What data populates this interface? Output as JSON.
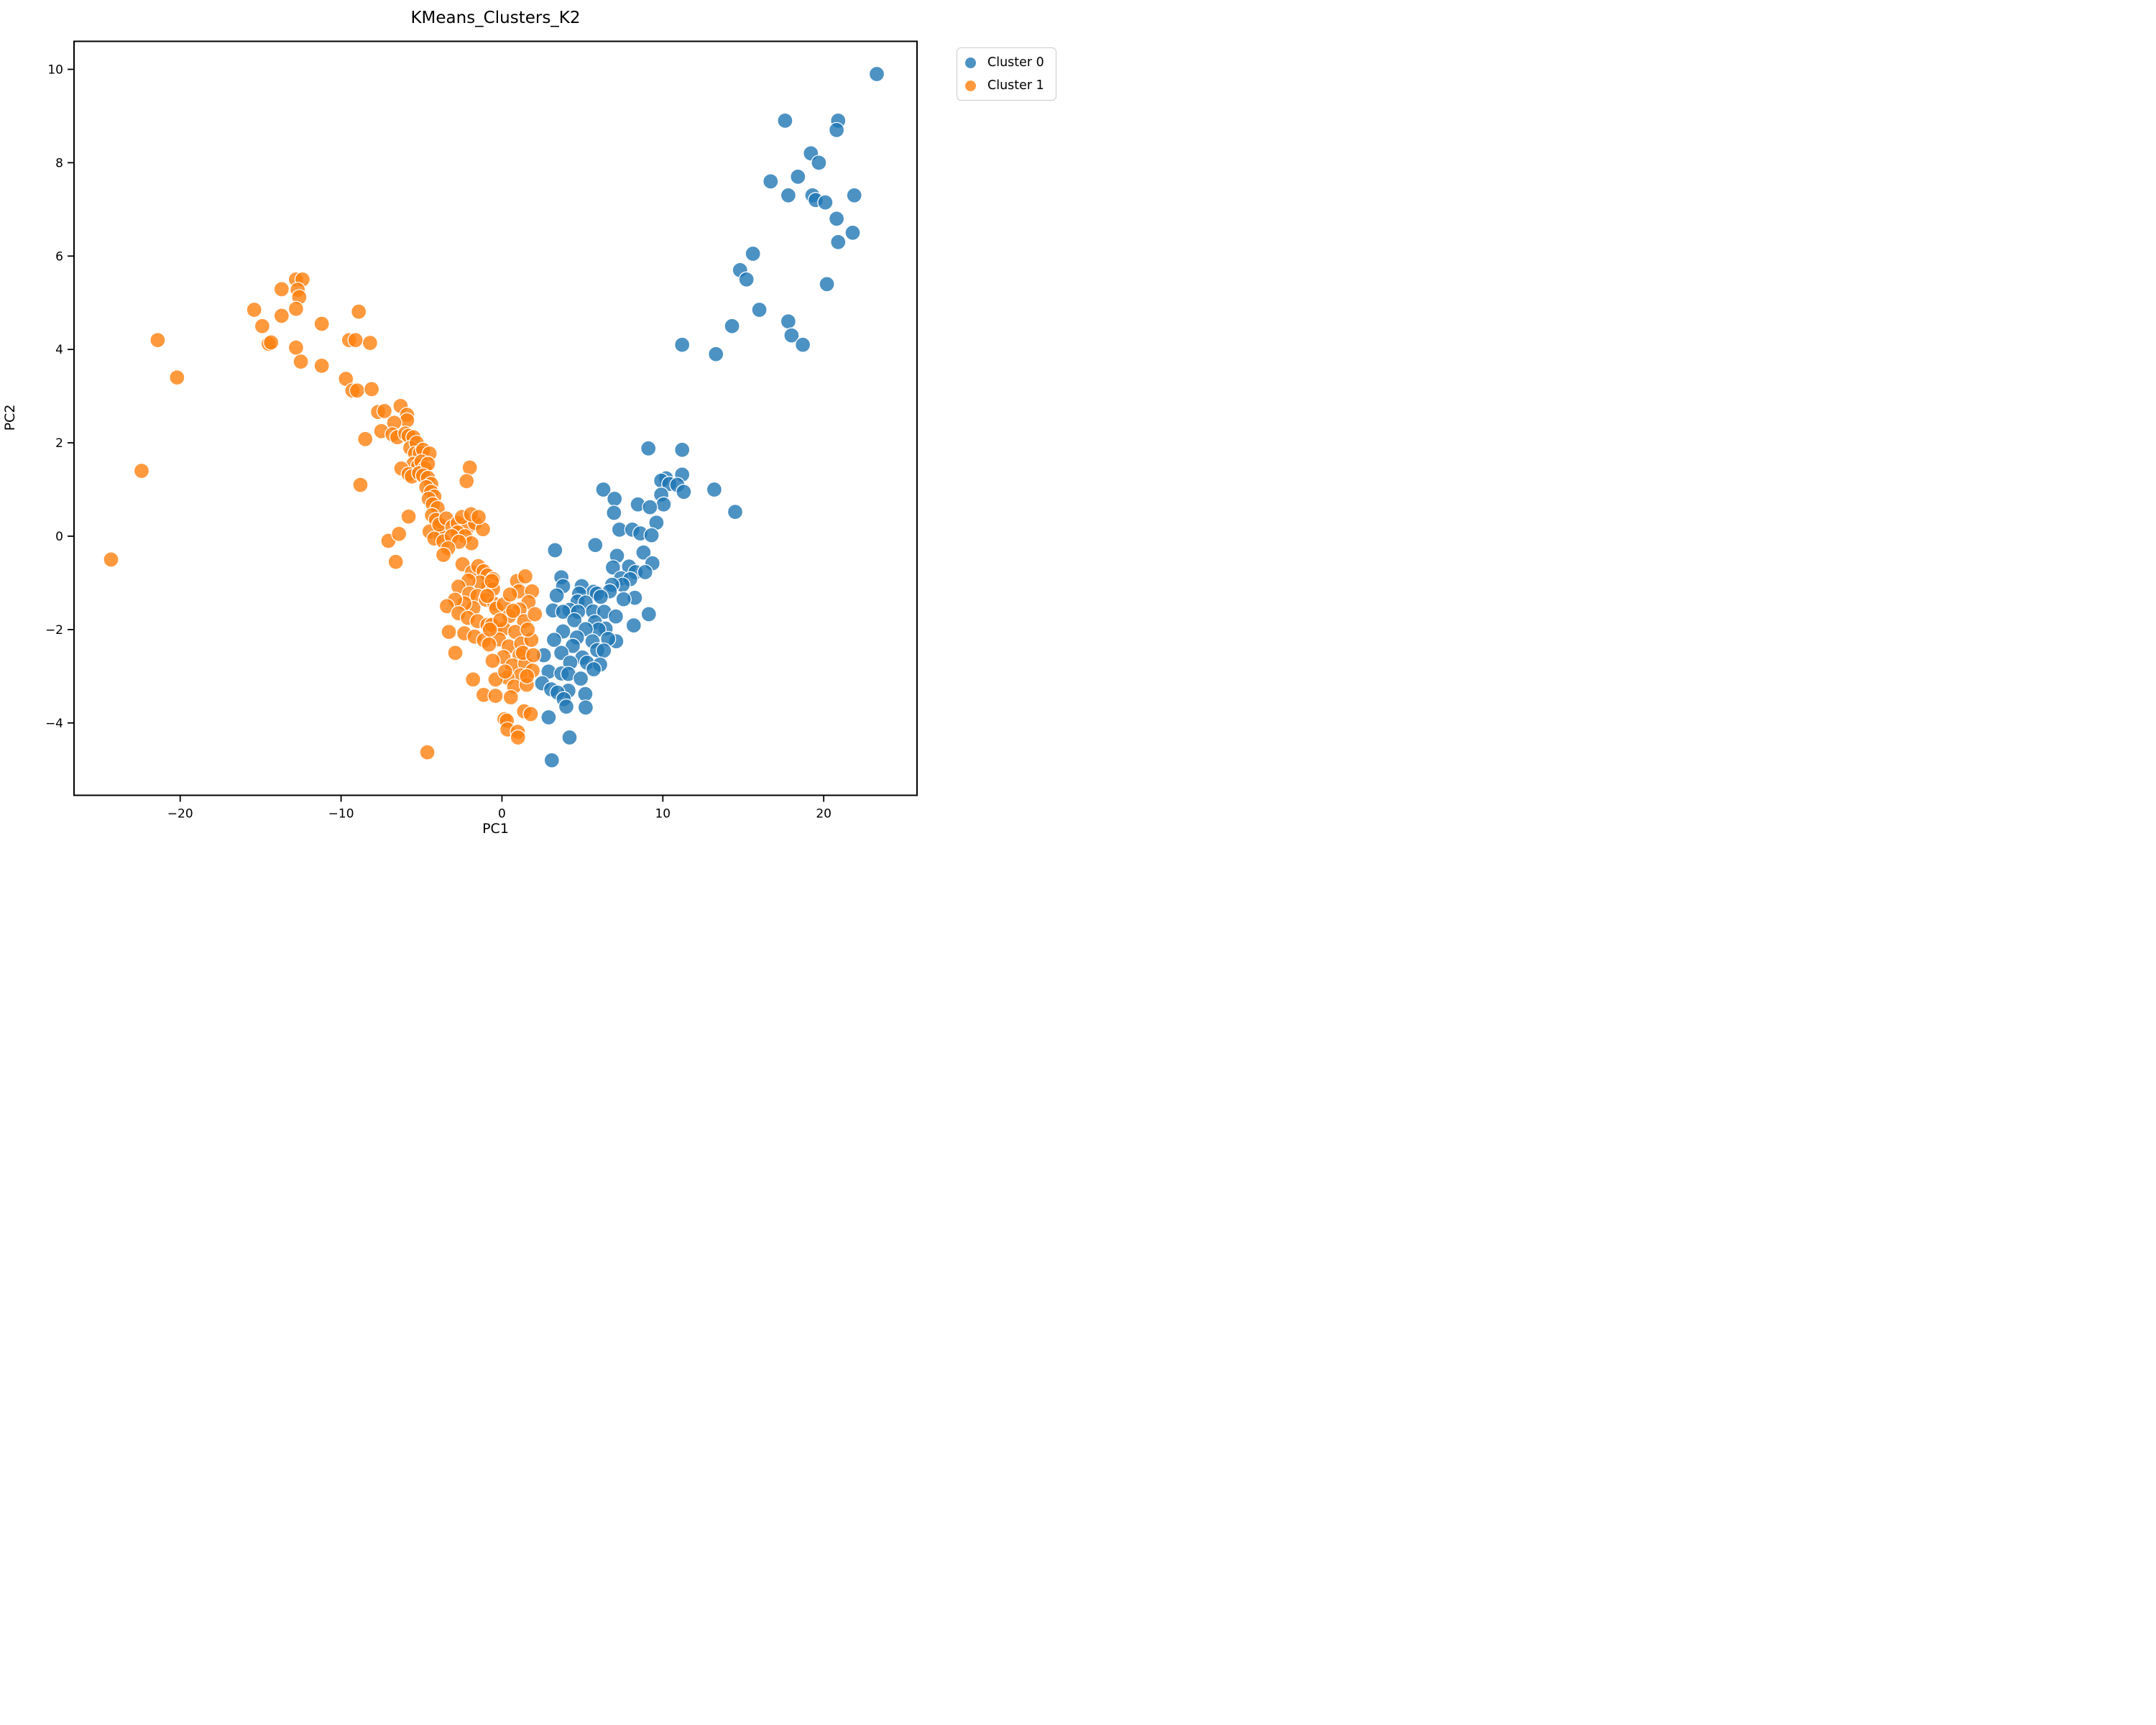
{
  "figure": {
    "title": "KMeans_Clusters_K2"
  },
  "chart_data": {
    "type": "scatter",
    "title": "KMeans_Clusters_K2",
    "xlabel": "PC1",
    "ylabel": "PC2",
    "xlim": [
      -26.6,
      25.8
    ],
    "ylim": [
      -5.55,
      10.6
    ],
    "x_ticks": [
      -20,
      -10,
      0,
      10,
      20
    ],
    "y_ticks": [
      -4,
      -2,
      0,
      2,
      4,
      6,
      8,
      10
    ],
    "grid": false,
    "marker_alpha": 0.8,
    "legend": {
      "position": "upper right, outside axes",
      "entries": [
        "Cluster 0",
        "Cluster 1"
      ]
    },
    "series": [
      {
        "name": "Cluster 0",
        "color": "#1f77b4",
        "points": [
          [
            23.3,
            9.9
          ],
          [
            17.6,
            8.9
          ],
          [
            20.9,
            8.9
          ],
          [
            20.8,
            8.7
          ],
          [
            19.2,
            8.2
          ],
          [
            19.7,
            8.0
          ],
          [
            18.4,
            7.7
          ],
          [
            16.7,
            7.6
          ],
          [
            17.8,
            7.3
          ],
          [
            19.3,
            7.3
          ],
          [
            19.5,
            7.2
          ],
          [
            20.1,
            7.15
          ],
          [
            21.9,
            7.3
          ],
          [
            20.8,
            6.8
          ],
          [
            21.8,
            6.5
          ],
          [
            20.9,
            6.3
          ],
          [
            15.6,
            6.05
          ],
          [
            14.8,
            5.7
          ],
          [
            15.2,
            5.5
          ],
          [
            20.2,
            5.4
          ],
          [
            16.0,
            4.85
          ],
          [
            17.8,
            4.6
          ],
          [
            14.3,
            4.5
          ],
          [
            18.0,
            4.3
          ],
          [
            18.7,
            4.1
          ],
          [
            11.2,
            4.1
          ],
          [
            13.3,
            3.9
          ],
          [
            9.1,
            1.88
          ],
          [
            11.2,
            1.85
          ],
          [
            11.2,
            1.32
          ],
          [
            10.2,
            1.24
          ],
          [
            9.9,
            1.19
          ],
          [
            10.4,
            1.12
          ],
          [
            10.9,
            1.1
          ],
          [
            11.3,
            0.95
          ],
          [
            6.3,
            1.0
          ],
          [
            13.2,
            1.0
          ],
          [
            9.9,
            0.89
          ],
          [
            7.0,
            0.8
          ],
          [
            8.45,
            0.68
          ],
          [
            10.05,
            0.68
          ],
          [
            9.2,
            0.62
          ],
          [
            6.96,
            0.5
          ],
          [
            14.5,
            0.52
          ],
          [
            9.6,
            0.29
          ],
          [
            7.3,
            0.14
          ],
          [
            8.1,
            0.14
          ],
          [
            8.6,
            0.06
          ],
          [
            9.3,
            0.02
          ],
          [
            5.8,
            -0.19
          ],
          [
            3.3,
            -0.3
          ],
          [
            7.15,
            -0.42
          ],
          [
            8.8,
            -0.35
          ],
          [
            9.35,
            -0.58
          ],
          [
            7.9,
            -0.65
          ],
          [
            6.9,
            -0.67
          ],
          [
            8.3,
            -0.77
          ],
          [
            8.9,
            -0.77
          ],
          [
            3.69,
            -0.88
          ],
          [
            7.4,
            -0.9
          ],
          [
            7.97,
            -0.92
          ],
          [
            7.5,
            -1.04
          ],
          [
            4.96,
            -1.07
          ],
          [
            6.85,
            -1.04
          ],
          [
            3.8,
            -1.07
          ],
          [
            5.7,
            -1.19
          ],
          [
            6.7,
            -1.18
          ],
          [
            4.8,
            -1.23
          ],
          [
            5.9,
            -1.23
          ],
          [
            3.4,
            -1.27
          ],
          [
            6.14,
            -1.3
          ],
          [
            8.26,
            -1.32
          ],
          [
            7.56,
            -1.35
          ],
          [
            4.7,
            -1.4
          ],
          [
            5.2,
            -1.42
          ],
          [
            3.17,
            -1.59
          ],
          [
            4.2,
            -1.58
          ],
          [
            3.8,
            -1.62
          ],
          [
            4.73,
            -1.62
          ],
          [
            5.66,
            -1.61
          ],
          [
            6.36,
            -1.62
          ],
          [
            9.13,
            -1.67
          ],
          [
            7.08,
            -1.72
          ],
          [
            4.5,
            -1.8
          ],
          [
            5.78,
            -1.84
          ],
          [
            8.19,
            -1.91
          ],
          [
            6.44,
            -1.98
          ],
          [
            6.0,
            -2.0
          ],
          [
            5.2,
            -1.99
          ],
          [
            3.8,
            -2.04
          ],
          [
            4.66,
            -2.17
          ],
          [
            3.24,
            -2.22
          ],
          [
            5.63,
            -2.25
          ],
          [
            7.1,
            -2.25
          ],
          [
            6.6,
            -2.2
          ],
          [
            4.4,
            -2.35
          ],
          [
            5.92,
            -2.44
          ],
          [
            6.33,
            -2.45
          ],
          [
            3.69,
            -2.5
          ],
          [
            2.6,
            -2.55
          ],
          [
            5.0,
            -2.6
          ],
          [
            4.24,
            -2.71
          ],
          [
            5.29,
            -2.71
          ],
          [
            6.1,
            -2.75
          ],
          [
            5.7,
            -2.85
          ],
          [
            2.9,
            -2.9
          ],
          [
            3.7,
            -2.94
          ],
          [
            4.13,
            -2.95
          ],
          [
            4.9,
            -3.05
          ],
          [
            2.5,
            -3.15
          ],
          [
            3.06,
            -3.28
          ],
          [
            4.13,
            -3.31
          ],
          [
            5.18,
            -3.38
          ],
          [
            3.46,
            -3.35
          ],
          [
            3.84,
            -3.49
          ],
          [
            5.2,
            -3.67
          ],
          [
            4.0,
            -3.65
          ],
          [
            2.9,
            -3.88
          ],
          [
            4.2,
            -4.31
          ],
          [
            3.1,
            -4.8
          ]
        ]
      },
      {
        "name": "Cluster 1",
        "color": "#ff7f0e",
        "points": [
          [
            -24.3,
            -0.5
          ],
          [
            -22.4,
            1.4
          ],
          [
            -21.4,
            4.2
          ],
          [
            -20.2,
            3.4
          ],
          [
            -15.4,
            4.85
          ],
          [
            -14.9,
            4.5
          ],
          [
            -14.5,
            4.12
          ],
          [
            -14.35,
            4.15
          ],
          [
            -13.7,
            5.29
          ],
          [
            -13.7,
            4.72
          ],
          [
            -12.8,
            5.5
          ],
          [
            -12.4,
            5.5
          ],
          [
            -12.7,
            5.28
          ],
          [
            -12.6,
            5.12
          ],
          [
            -12.8,
            4.87
          ],
          [
            -12.8,
            4.04
          ],
          [
            -12.5,
            3.74
          ],
          [
            -11.2,
            4.55
          ],
          [
            -11.2,
            3.65
          ],
          [
            -9.7,
            3.37
          ],
          [
            -9.5,
            4.2
          ],
          [
            -9.1,
            4.2
          ],
          [
            -8.9,
            4.81
          ],
          [
            -8.2,
            4.14
          ],
          [
            -9.3,
            3.12
          ],
          [
            -9.0,
            3.12
          ],
          [
            -8.1,
            3.15
          ],
          [
            -7.7,
            2.66
          ],
          [
            -7.3,
            2.68
          ],
          [
            -6.3,
            2.79
          ],
          [
            -5.9,
            2.6
          ],
          [
            -5.9,
            2.48
          ],
          [
            -6.7,
            2.43
          ],
          [
            -7.5,
            2.25
          ],
          [
            -8.5,
            2.08
          ],
          [
            -6.8,
            2.18
          ],
          [
            -6.5,
            2.12
          ],
          [
            -6.0,
            2.2
          ],
          [
            -5.8,
            2.15
          ],
          [
            -5.5,
            2.12
          ],
          [
            -5.7,
            1.89
          ],
          [
            -5.3,
            2.0
          ],
          [
            -5.4,
            1.77
          ],
          [
            -5.1,
            1.78
          ],
          [
            -5.5,
            1.55
          ],
          [
            -5.2,
            1.51
          ],
          [
            -4.9,
            1.85
          ],
          [
            -4.5,
            1.77
          ],
          [
            -6.25,
            1.45
          ],
          [
            -5.8,
            1.33
          ],
          [
            -5.6,
            1.28
          ],
          [
            -5.0,
            1.6
          ],
          [
            -4.8,
            1.45
          ],
          [
            -5.15,
            1.35
          ],
          [
            -4.6,
            1.55
          ],
          [
            -2.0,
            1.47
          ],
          [
            -8.8,
            1.1
          ],
          [
            -5.8,
            0.42
          ],
          [
            -7.06,
            -0.1
          ],
          [
            -6.4,
            0.05
          ],
          [
            -6.6,
            -0.55
          ],
          [
            -4.9,
            1.3
          ],
          [
            -4.6,
            1.25
          ],
          [
            -4.4,
            1.12
          ],
          [
            -4.7,
            1.05
          ],
          [
            -4.4,
            0.95
          ],
          [
            -4.2,
            0.85
          ],
          [
            -4.55,
            0.8
          ],
          [
            -4.3,
            0.68
          ],
          [
            -4.0,
            0.6
          ],
          [
            -4.35,
            0.45
          ],
          [
            -4.1,
            0.35
          ],
          [
            -3.9,
            0.2
          ],
          [
            -4.5,
            0.1
          ],
          [
            -3.8,
            0.0
          ],
          [
            -4.2,
            -0.05
          ],
          [
            -3.9,
            0.25
          ],
          [
            -3.46,
            0.38
          ],
          [
            -3.08,
            0.2
          ],
          [
            -2.75,
            0.28
          ],
          [
            -2.12,
            0.2
          ],
          [
            -1.67,
            0.28
          ],
          [
            -1.18,
            0.15
          ],
          [
            -2.48,
            0.41
          ],
          [
            -1.92,
            0.47
          ],
          [
            -1.45,
            0.41
          ],
          [
            -2.75,
            0.08
          ],
          [
            -2.3,
            0.0
          ],
          [
            -1.9,
            -0.15
          ],
          [
            -3.64,
            -0.11
          ],
          [
            -3.12,
            0.0
          ],
          [
            -2.67,
            -0.12
          ],
          [
            -3.35,
            -0.26
          ],
          [
            -3.64,
            -0.4
          ],
          [
            -2.2,
            1.18
          ],
          [
            -2.45,
            -0.6
          ],
          [
            -1.85,
            -0.77
          ],
          [
            -1.47,
            -0.64
          ],
          [
            -1.14,
            -0.75
          ],
          [
            -0.9,
            -0.84
          ],
          [
            -0.55,
            -0.92
          ],
          [
            -0.85,
            -1.08
          ],
          [
            -0.55,
            -1.13
          ],
          [
            -1.37,
            -0.99
          ],
          [
            -2.08,
            -0.95
          ],
          [
            -2.7,
            -1.08
          ],
          [
            -2.03,
            -1.23
          ],
          [
            -1.52,
            -1.28
          ],
          [
            -1.0,
            -1.36
          ],
          [
            -0.47,
            -1.45
          ],
          [
            -1.78,
            -1.54
          ],
          [
            -2.34,
            -1.44
          ],
          [
            -2.92,
            -1.36
          ],
          [
            -3.42,
            -1.5
          ],
          [
            -2.7,
            -1.65
          ],
          [
            -2.12,
            -1.75
          ],
          [
            -1.52,
            -1.82
          ],
          [
            -0.9,
            -1.9
          ],
          [
            -0.4,
            -1.98
          ],
          [
            -2.34,
            -2.08
          ],
          [
            -1.7,
            -2.15
          ],
          [
            -1.12,
            -2.23
          ],
          [
            -3.3,
            -2.05
          ],
          [
            -2.9,
            -2.5
          ],
          [
            -0.63,
            -0.96
          ],
          [
            -0.92,
            -1.28
          ],
          [
            -0.36,
            -1.55
          ],
          [
            -0.63,
            -1.9
          ],
          [
            0.11,
            -1.46
          ],
          [
            0.94,
            -0.96
          ],
          [
            1.05,
            -1.18
          ],
          [
            1.45,
            -0.86
          ],
          [
            1.87,
            -1.18
          ],
          [
            1.65,
            -1.41
          ],
          [
            1.09,
            -1.57
          ],
          [
            0.45,
            -1.71
          ],
          [
            1.38,
            -1.82
          ],
          [
            2.05,
            -1.67
          ],
          [
            0.11,
            -1.98
          ],
          [
            0.83,
            -2.05
          ],
          [
            -0.18,
            -2.21
          ],
          [
            -0.8,
            -2.32
          ],
          [
            0.42,
            -2.36
          ],
          [
            1.2,
            -2.3
          ],
          [
            1.83,
            -2.22
          ],
          [
            1.09,
            -2.55
          ],
          [
            0.09,
            -2.59
          ],
          [
            -0.58,
            -2.67
          ],
          [
            0.65,
            -2.77
          ],
          [
            1.45,
            -2.73
          ],
          [
            1.9,
            -2.88
          ],
          [
            1.16,
            -2.98
          ],
          [
            0.34,
            -3.03
          ],
          [
            -0.4,
            -3.07
          ],
          [
            0.76,
            -3.22
          ],
          [
            1.54,
            -3.18
          ],
          [
            -1.8,
            -3.07
          ],
          [
            -1.14,
            -3.4
          ],
          [
            -0.4,
            -3.42
          ],
          [
            0.16,
            -3.92
          ],
          [
            0.3,
            -3.95
          ],
          [
            1.38,
            -3.75
          ],
          [
            1.79,
            -3.81
          ],
          [
            0.34,
            -4.14
          ],
          [
            0.98,
            -4.19
          ],
          [
            1.0,
            -4.31
          ],
          [
            -4.64,
            -4.63
          ],
          [
            0.5,
            -1.25
          ],
          [
            1.6,
            -2.0
          ],
          [
            0.2,
            -2.9
          ],
          [
            1.3,
            -2.5
          ],
          [
            -0.1,
            -1.8
          ],
          [
            0.7,
            -1.6
          ],
          [
            1.95,
            -2.55
          ],
          [
            0.55,
            -3.45
          ],
          [
            -0.75,
            -2.0
          ],
          [
            1.55,
            -3.0
          ]
        ]
      }
    ]
  }
}
